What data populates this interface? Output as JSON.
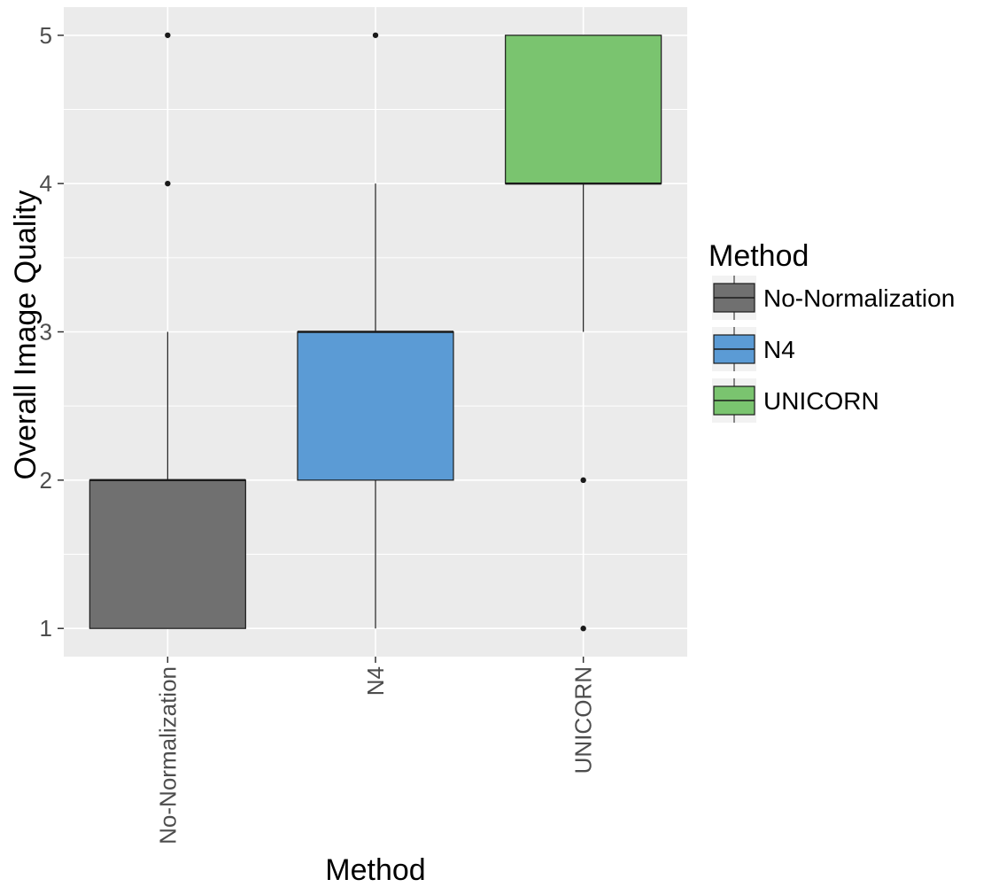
{
  "chart_data": {
    "type": "box",
    "xlabel": "Method",
    "ylabel": "Overall Image Quality",
    "categories": [
      "No-Normalization",
      "N4",
      "UNICORN"
    ],
    "ylim": [
      0.81,
      5.19
    ],
    "yticks": [
      1,
      2,
      3,
      4,
      5
    ],
    "grid": true,
    "legend": {
      "title": "Method",
      "position": "right",
      "entries": [
        "No-Normalization",
        "N4",
        "UNICORN"
      ]
    },
    "colors": [
      "#707070",
      "#5b9bd5",
      "#7ac46f"
    ],
    "series": [
      {
        "name": "No-Normalization",
        "q1": 1,
        "median": 2,
        "q3": 2,
        "whisker_low": 1,
        "whisker_high": 3,
        "outliers": [
          4,
          5
        ]
      },
      {
        "name": "N4",
        "q1": 2,
        "median": 3,
        "q3": 3,
        "whisker_low": 1,
        "whisker_high": 4,
        "outliers": [
          5
        ]
      },
      {
        "name": "UNICORN",
        "q1": 4,
        "median": 4,
        "q3": 5,
        "whisker_low": 3,
        "whisker_high": 5,
        "outliers": [
          1,
          2
        ]
      }
    ]
  }
}
